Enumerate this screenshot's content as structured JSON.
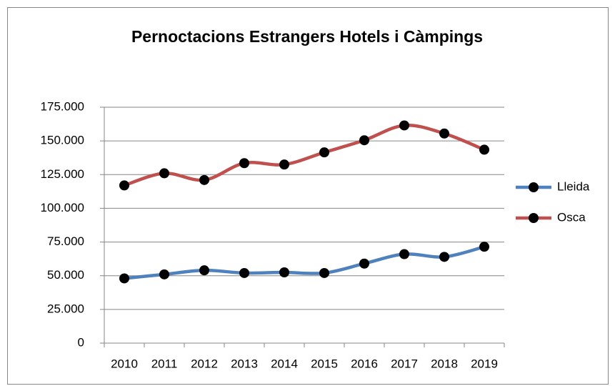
{
  "chart_data": {
    "type": "line",
    "title": "Pernoctacions Estrangers Hotels i Càmpings",
    "categories": [
      "2010",
      "2011",
      "2012",
      "2013",
      "2014",
      "2015",
      "2016",
      "2017",
      "2018",
      "2019"
    ],
    "series": [
      {
        "name": "Lleida",
        "color": "#4f81bd",
        "values": [
          48000,
          51000,
          54000,
          52000,
          52500,
          52000,
          59000,
          66000,
          64000,
          71500
        ]
      },
      {
        "name": "Osca",
        "color": "#c0504d",
        "values": [
          117000,
          126000,
          121000,
          133500,
          132500,
          141500,
          150500,
          161500,
          155500,
          143500
        ]
      }
    ],
    "ylim": [
      0,
      175000
    ],
    "yticks": [
      0,
      {
        "value": 25000,
        "label": "25.000"
      },
      {
        "value": 50000,
        "label": "50.000"
      },
      {
        "value": 75000,
        "label": "75.000"
      },
      {
        "value": 100000,
        "label": "100.000"
      },
      {
        "value": 125000,
        "label": "125.000"
      },
      {
        "value": 150000,
        "label": "150.000"
      },
      {
        "value": 175000,
        "label": "175.000"
      }
    ],
    "grid": true,
    "legend": "right",
    "smooth": true,
    "marker_color": "#000000"
  }
}
